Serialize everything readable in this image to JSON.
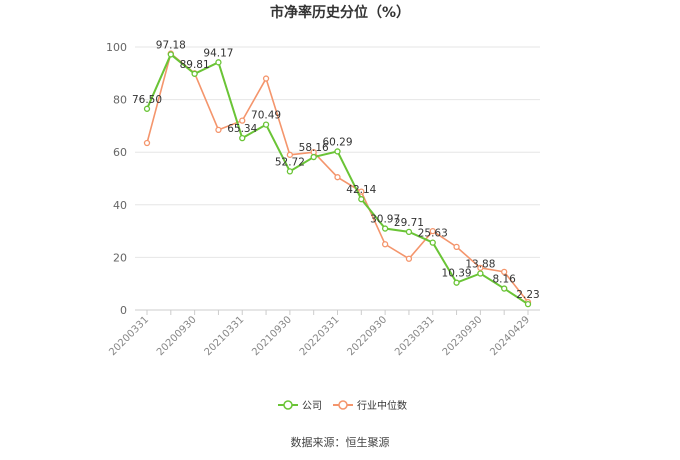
{
  "chart_data": {
    "type": "line",
    "title": "市净率历史分位（%）",
    "ylim": [
      0,
      100
    ],
    "yticks": [
      0,
      20,
      40,
      60,
      80,
      100
    ],
    "grid": true,
    "legend_position": "bottom",
    "x": [
      "20200331",
      "20200630",
      "20200930",
      "20201231",
      "20210331",
      "20210630",
      "20210930",
      "20211231",
      "20220331",
      "20220630",
      "20220930",
      "20221230",
      "20230331",
      "20230630",
      "20230930",
      "20231229",
      "20240429"
    ],
    "x_tick_labels": [
      "20200331",
      "20200930",
      "20210331",
      "20210930",
      "20220331",
      "20220930",
      "20230331",
      "20230930",
      "20240429"
    ],
    "series": [
      {
        "name": "公司",
        "color": "#6ac436",
        "values": [
          76.5,
          97.18,
          89.81,
          94.17,
          65.34,
          70.49,
          52.72,
          58.16,
          60.29,
          42.14,
          30.97,
          29.71,
          25.63,
          10.39,
          13.88,
          8.16,
          2.23
        ],
        "labels": [
          "76.50",
          "97.18",
          "89.81",
          "94.17",
          "65.34",
          "70.49",
          "52.72",
          "58.16",
          "60.29",
          "42.14",
          "30.97",
          "29.71",
          "25.63",
          "10.39",
          "13.88",
          "8.16",
          "2.23"
        ]
      },
      {
        "name": "行业中位数",
        "color": "#f4956c",
        "values": [
          63.5,
          97.5,
          90.0,
          68.5,
          72.0,
          88.0,
          59.0,
          60.0,
          50.5,
          45.0,
          25.0,
          19.5,
          30.0,
          24.0,
          16.0,
          14.5,
          3.0
        ]
      }
    ]
  },
  "footer": {
    "source": "数据来源：恒生聚源"
  }
}
